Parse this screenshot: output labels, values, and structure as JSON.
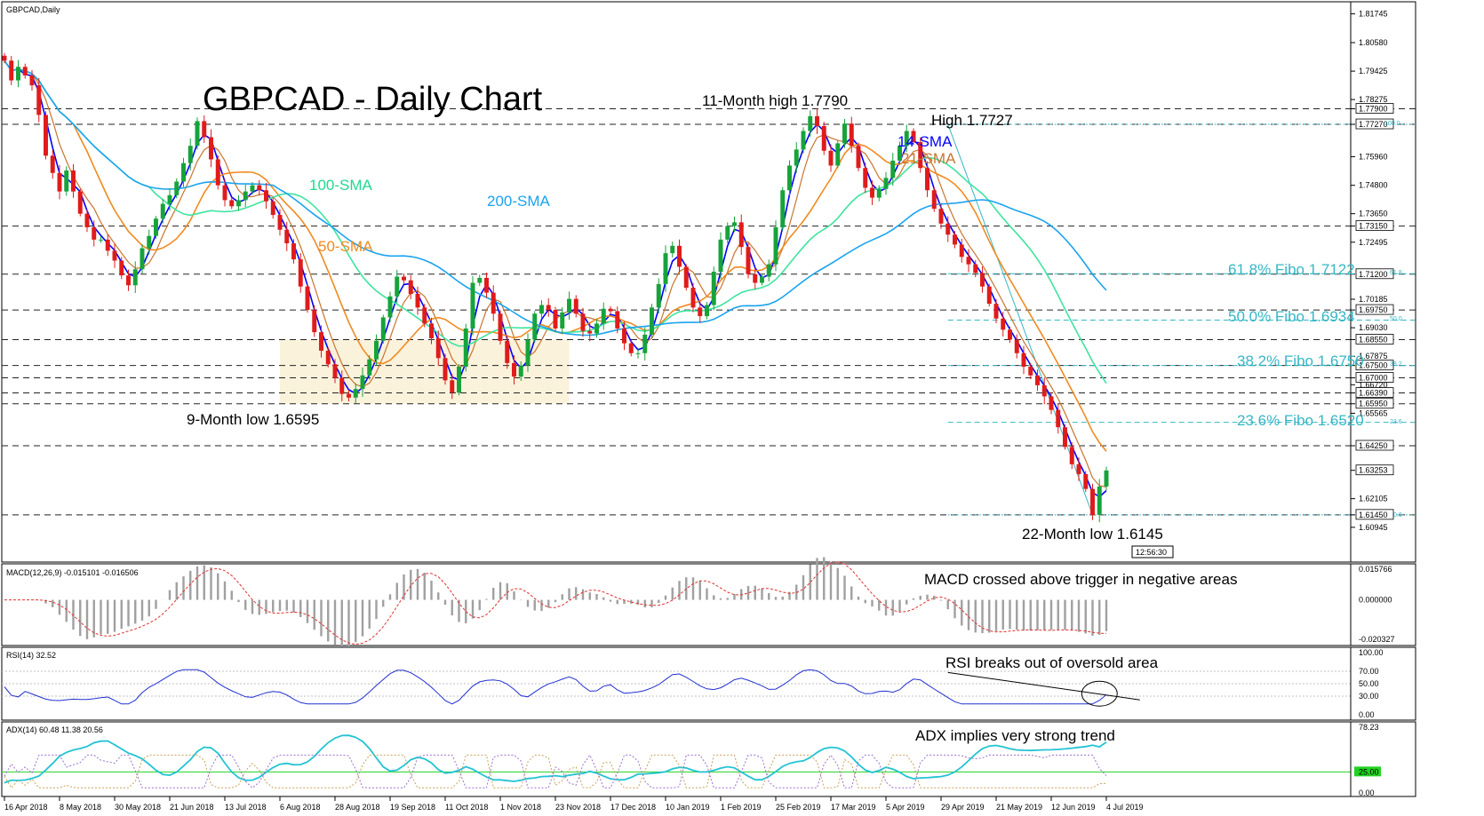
{
  "window_title": "GBPCAD,Daily",
  "colors": {
    "sma14": "#0000ff",
    "sma21": "#c87530",
    "sma50": "#f08a20",
    "sma100": "#3ee4a0",
    "sma200": "#1aa3f0",
    "fibo": "#35b7c5",
    "bull": "#16a33a",
    "bear": "#e01b1b",
    "macd_hist": "#a0a0a0",
    "macd_signal": "#e03030",
    "rsi": "#2030d0",
    "adx": "#22c3d4",
    "plus_di": "#c8a05a",
    "minus_di": "#9b6fd0",
    "adx_level": "#22d222",
    "range_box": "#fbf2dc"
  },
  "chart_data": [
    {
      "type": "candlestick",
      "title": "GBPCAD - Daily Chart",
      "symbol_label": "GBPCAD,Daily",
      "x_labels": [
        "16 Apr 2018",
        "8 May 2018",
        "30 May 2018",
        "21 Jun 2018",
        "13 Jul 2018",
        "6 Aug 2018",
        "28 Aug 2018",
        "19 Sep 2018",
        "11 Oct 2018",
        "1 Nov 2018",
        "23 Nov 2018",
        "17 Dec 2018",
        "10 Jan 2019",
        "1 Feb 2019",
        "25 Feb 2019",
        "17 Mar 2019",
        "5 Apr 2019",
        "29 Apr 2019",
        "21 May 2019",
        "12 Jun 2019",
        "4 Jul 2019"
      ],
      "y_ticks": [
        "1.81745",
        "1.80580",
        "1.79425",
        "1.78275",
        "1.77900",
        "1.77270",
        "1.75960",
        "1.74800",
        "1.73650",
        "1.73150",
        "1.72495",
        "1.71200",
        "1.70185",
        "1.69750",
        "1.69030",
        "1.68550",
        "1.67875",
        "1.67500",
        "1.67000",
        "1.66720",
        "1.66390",
        "1.65950",
        "1.65565",
        "1.64250",
        "1.63253",
        "1.62105",
        "1.61450",
        "1.60945"
      ],
      "ylim": [
        1.60545,
        1.82055
      ],
      "price_series": [
        1.7985,
        1.7905,
        1.796,
        1.7925,
        1.7885,
        1.7765,
        1.76,
        1.753,
        1.7455,
        1.754,
        1.7455,
        1.7365,
        1.731,
        1.726,
        1.726,
        1.7215,
        1.7175,
        1.7115,
        1.7075,
        1.714,
        1.7225,
        1.7275,
        1.7345,
        1.7405,
        1.744,
        1.7495,
        1.757,
        1.764,
        1.774,
        1.7675,
        1.7585,
        1.748,
        1.742,
        1.7395,
        1.742,
        1.7455,
        1.748,
        1.746,
        1.7415,
        1.736,
        1.73,
        1.7245,
        1.718,
        1.707,
        1.6975,
        1.6885,
        1.681,
        1.6755,
        1.67,
        1.6635,
        1.662,
        1.6655,
        1.671,
        1.6775,
        1.685,
        1.6945,
        1.703,
        1.711,
        1.7095,
        1.704,
        1.6985,
        1.692,
        1.686,
        1.678,
        1.669,
        1.664,
        1.6745,
        1.69,
        1.7085,
        1.7105,
        1.7045,
        1.696,
        1.685,
        1.676,
        1.6705,
        1.675,
        1.6855,
        1.696,
        1.6995,
        1.6975,
        1.69,
        1.6965,
        1.702,
        1.696,
        1.689,
        1.688,
        1.692,
        1.698,
        1.697,
        1.69,
        1.684,
        1.68,
        1.68,
        1.6875,
        1.6985,
        1.708,
        1.7205,
        1.7235,
        1.715,
        1.7065,
        1.6985,
        1.695,
        1.6995,
        1.713,
        1.726,
        1.7315,
        1.733,
        1.723,
        1.712,
        1.7085,
        1.711,
        1.716,
        1.731,
        1.746,
        1.756,
        1.7625,
        1.77,
        1.776,
        1.772,
        1.762,
        1.756,
        1.765,
        1.773,
        1.764,
        1.755,
        1.747,
        1.743,
        1.7465,
        1.751,
        1.758,
        1.764,
        1.77,
        1.7655,
        1.755,
        1.746,
        1.7385,
        1.7325,
        1.728,
        1.724,
        1.719,
        1.716,
        1.7125,
        1.707,
        1.7,
        1.694,
        1.6895,
        1.6855,
        1.68,
        1.6745,
        1.671,
        1.667,
        1.6625,
        1.657,
        1.65,
        1.642,
        1.635,
        1.631,
        1.625,
        1.6145,
        1.626,
        1.6325
      ],
      "moving_averages": [
        {
          "name": "14-SMA"
        },
        {
          "name": "21-SMA"
        },
        {
          "name": "50-SMA"
        },
        {
          "name": "100-SMA"
        },
        {
          "name": "200-SMA"
        }
      ],
      "horizontal_levels": [
        1.779,
        1.7727,
        1.7315,
        1.712,
        1.6975,
        1.6855,
        1.675,
        1.67,
        1.6639,
        1.6595,
        1.6425,
        1.6145
      ],
      "fibonacci": [
        {
          "label": "61.8% Fibo 1.7122",
          "tag": "61.8",
          "value": 1.7122
        },
        {
          "label": "50.0% Fibo 1.6934",
          "tag": "50.0",
          "value": 1.6934
        },
        {
          "label": "38.2% Fibo 1.6750",
          "tag": "38.2",
          "value": 1.675
        },
        {
          "label": "23.6% Fibo 1.6520",
          "tag": "23.6",
          "value": 1.652
        }
      ],
      "fibo_extremes": [
        {
          "tag": "100.0",
          "value": 1.7727
        },
        {
          "tag": "0.0",
          "value": 1.6145
        }
      ],
      "annotations": [
        "11-Month high 1.7790",
        "High 1.7727",
        "9-Month low 1.6595",
        "22-Month low 1.6145"
      ],
      "ma_labels": [
        "14-SMA",
        "21-SMA",
        "50-SMA",
        "100-SMA",
        "200-SMA"
      ],
      "time_badge": "12:56:30"
    },
    {
      "type": "bar",
      "title": "MACD(12,26,9) -0.015101 -0.016506",
      "annotation": "MACD crossed above trigger in negative areas",
      "y_ticks": [
        "0.015766",
        "0.000000",
        "-0.020327"
      ],
      "ylim": [
        -0.0203,
        0.0158
      ]
    },
    {
      "type": "line",
      "title": "RSI(14) 32.52",
      "annotation": "RSI breaks out of oversold area",
      "y_ticks": [
        "100.00",
        "70.00",
        "50.00",
        "30.00",
        "0.00"
      ],
      "ylim": [
        0,
        100
      ],
      "levels": [
        70,
        50,
        30
      ],
      "last_value": 32.52
    },
    {
      "type": "line",
      "title": "ADX(14) 60.48 11.38 20.56",
      "annotation": "ADX implies very strong trend",
      "y_ticks": [
        "78.23",
        "25.00",
        "0.00"
      ],
      "ylim": [
        0,
        78.23
      ],
      "level": 25,
      "values": {
        "adx": 60.48,
        "plus_di": 11.38,
        "minus_di": 20.56
      }
    }
  ]
}
